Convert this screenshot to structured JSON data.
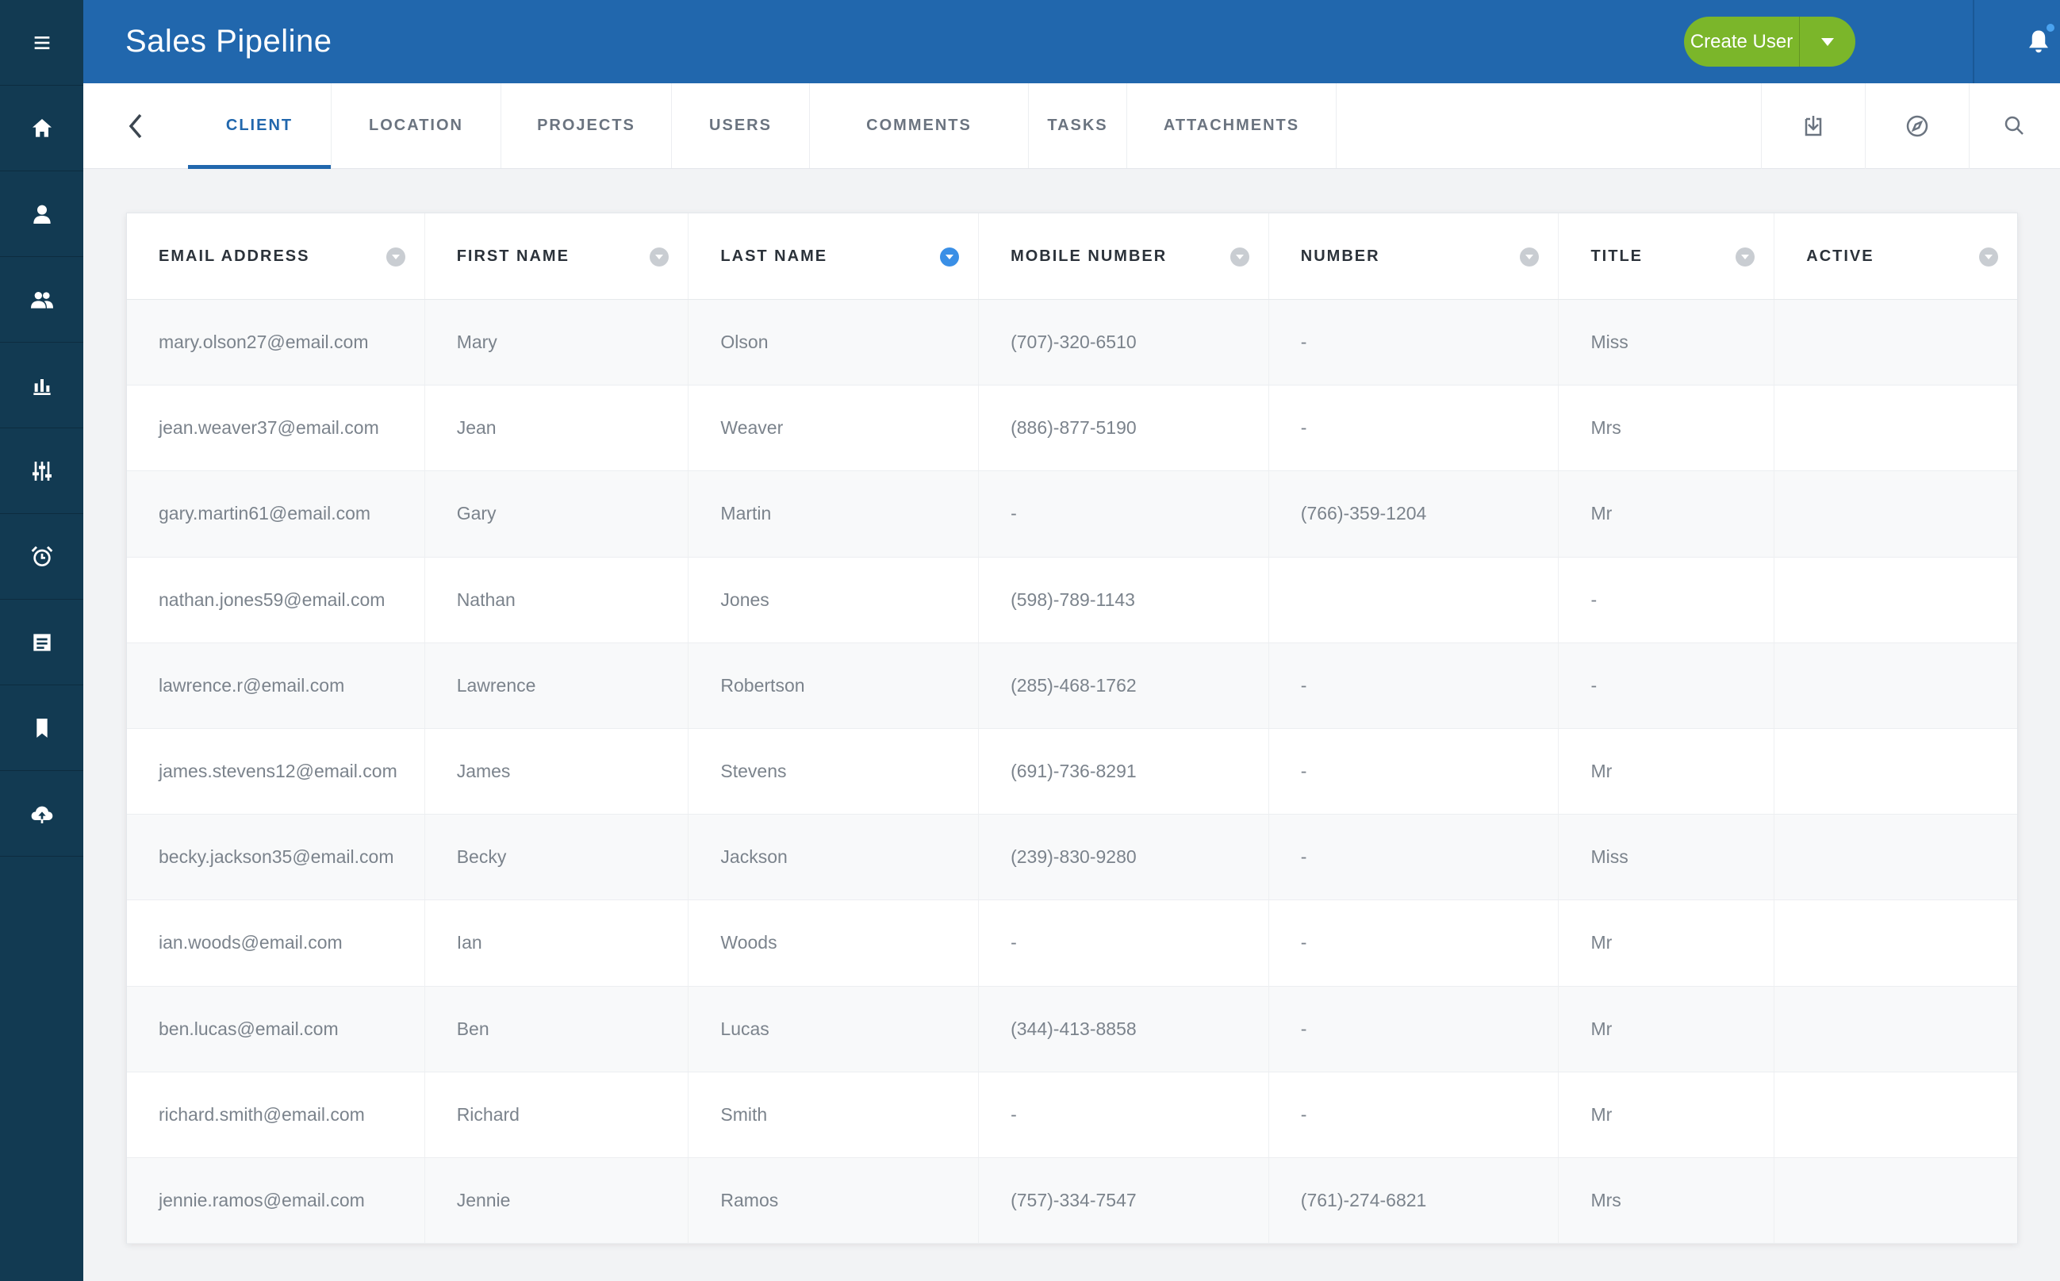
{
  "header": {
    "title": "Sales Pipeline",
    "create_label": "Create User",
    "brand_color": "#2167ad",
    "action_color": "#7bb62a"
  },
  "sidebar": {
    "items": [
      {
        "icon": "hamburger-menu-icon"
      },
      {
        "icon": "home-icon"
      },
      {
        "icon": "user-icon"
      },
      {
        "icon": "users-icon"
      },
      {
        "icon": "bar-chart-icon"
      },
      {
        "icon": "sliders-icon"
      },
      {
        "icon": "alarm-clock-icon"
      },
      {
        "icon": "document-icon"
      },
      {
        "icon": "bookmark-icon"
      },
      {
        "icon": "cloud-upload-icon"
      }
    ]
  },
  "tabs": [
    {
      "label": "CLIENT",
      "active": true
    },
    {
      "label": "LOCATION"
    },
    {
      "label": "PROJECTS"
    },
    {
      "label": "USERS"
    },
    {
      "label": "COMMENTS"
    },
    {
      "label": "TASKS"
    },
    {
      "label": "ATTACHMENTS"
    }
  ],
  "tools": [
    "download-icon",
    "compass-icon",
    "search-icon"
  ],
  "table": {
    "columns": [
      {
        "label": "EMAIL ADDRESS",
        "sorted": false
      },
      {
        "label": "FIRST NAME",
        "sorted": false
      },
      {
        "label": "LAST NAME",
        "sorted": true
      },
      {
        "label": "MOBILE NUMBER",
        "sorted": false
      },
      {
        "label": "NUMBER",
        "sorted": false
      },
      {
        "label": "TITLE",
        "sorted": false
      },
      {
        "label": "ACTIVE",
        "sorted": false
      }
    ],
    "rows": [
      [
        "mary.olson27@email.com",
        "Mary",
        "Olson",
        "(707)-320-6510",
        "-",
        "Miss",
        ""
      ],
      [
        "jean.weaver37@email.com",
        "Jean",
        "Weaver",
        "(886)-877-5190",
        "-",
        "Mrs",
        ""
      ],
      [
        "gary.martin61@email.com",
        "Gary",
        "Martin",
        "-",
        "(766)-359-1204",
        "Mr",
        ""
      ],
      [
        "nathan.jones59@email.com",
        "Nathan",
        "Jones",
        "(598)-789-1143",
        "",
        "-",
        ""
      ],
      [
        "lawrence.r@email.com",
        "Lawrence",
        "Robertson",
        "(285)-468-1762",
        "-",
        "-",
        ""
      ],
      [
        "james.stevens12@email.com",
        "James",
        "Stevens",
        "(691)-736-8291",
        "-",
        "Mr",
        ""
      ],
      [
        "becky.jackson35@email.com",
        "Becky",
        "Jackson",
        "(239)-830-9280",
        "-",
        "Miss",
        ""
      ],
      [
        "ian.woods@email.com",
        "Ian",
        "Woods",
        "-",
        "-",
        "Mr",
        ""
      ],
      [
        "ben.lucas@email.com",
        "Ben",
        "Lucas",
        "(344)-413-8858",
        "-",
        "Mr",
        ""
      ],
      [
        "richard.smith@email.com",
        "Richard",
        "Smith",
        "-",
        "-",
        "Mr",
        ""
      ],
      [
        "jennie.ramos@email.com",
        "Jennie",
        "Ramos",
        "(757)-334-7547",
        "(761)-274-6821",
        "Mrs",
        ""
      ]
    ]
  }
}
